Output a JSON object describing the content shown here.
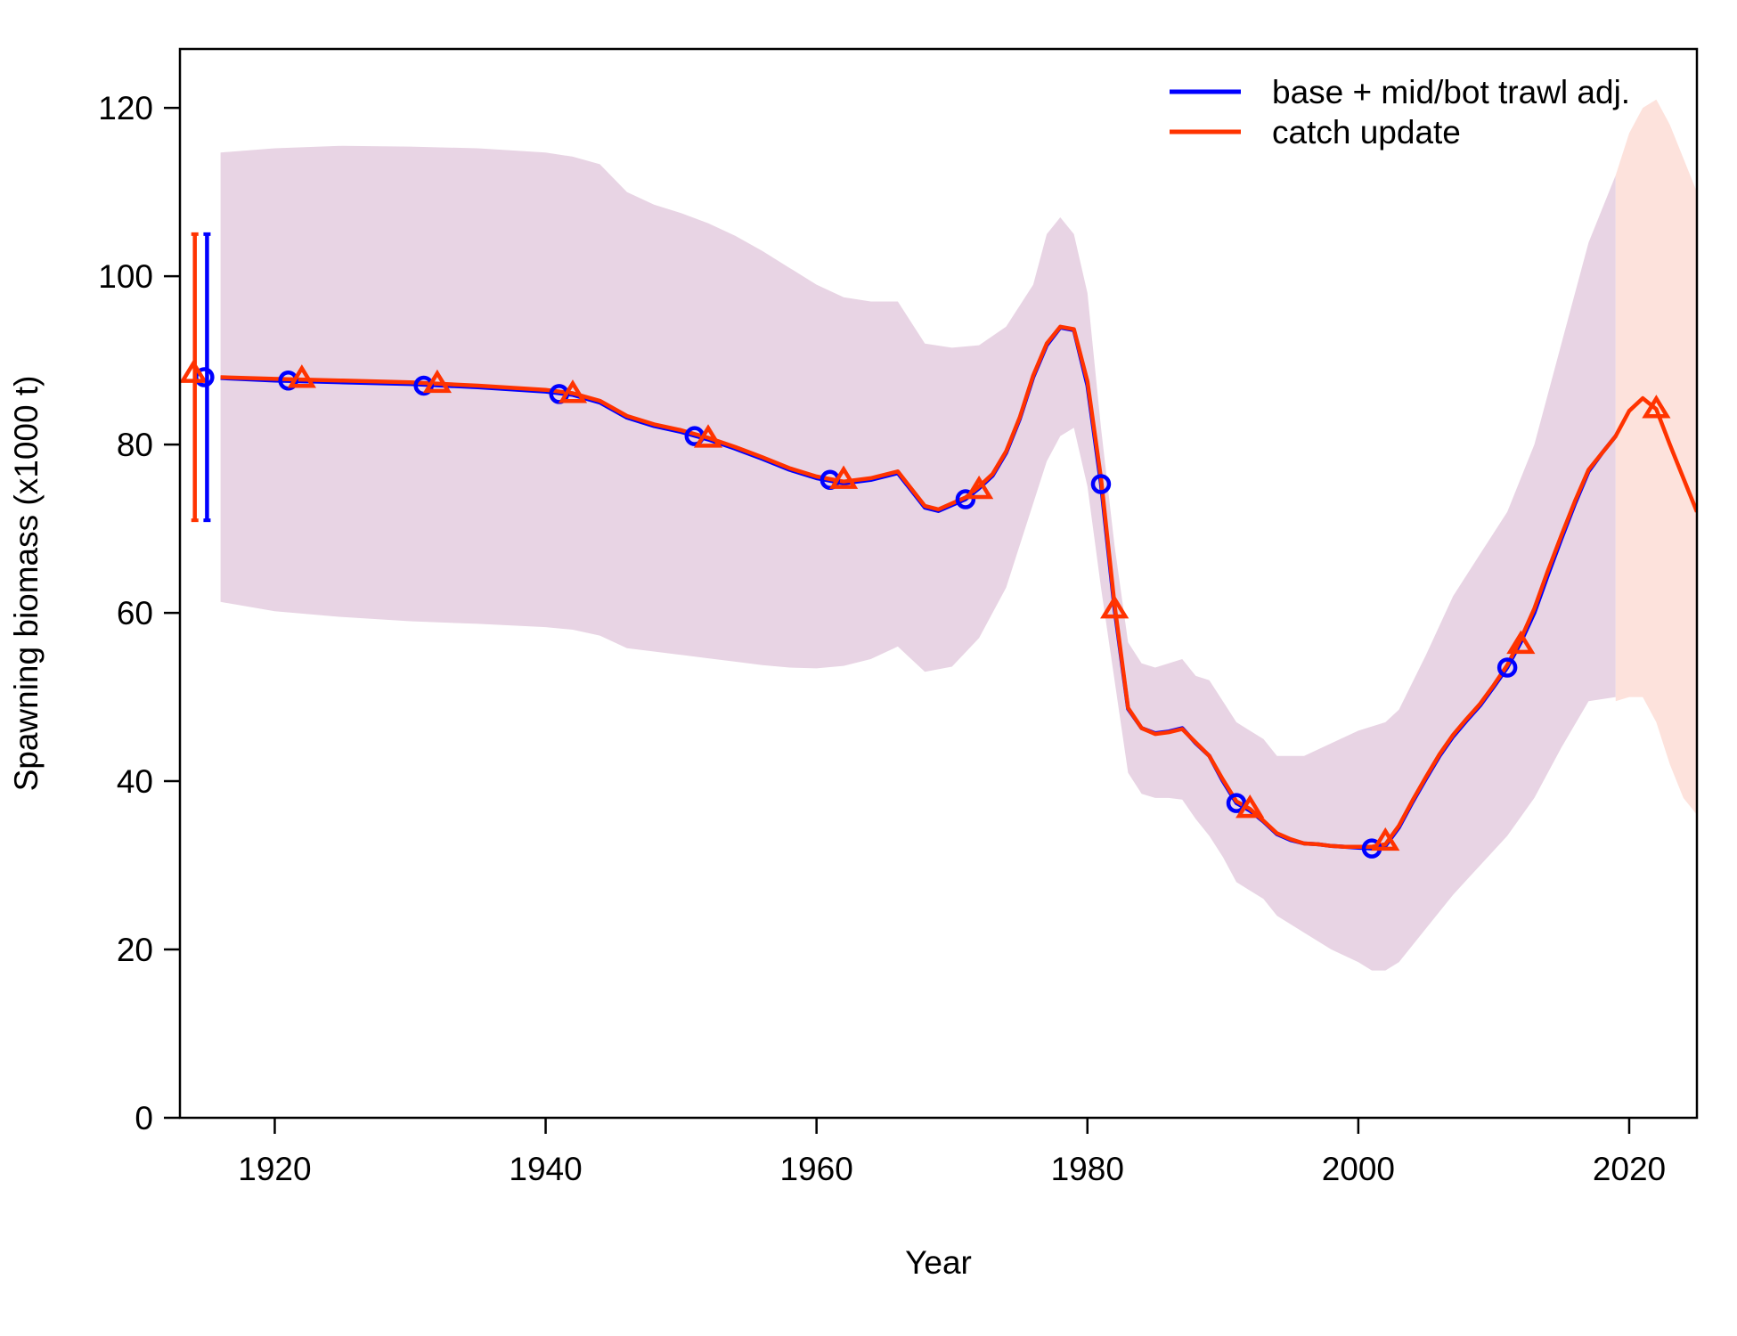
{
  "chart_data": {
    "type": "line",
    "xlabel": "Year",
    "ylabel": "Spawning biomass (x1000 t)",
    "xlim": [
      1913,
      2025
    ],
    "ylim": [
      0,
      127
    ],
    "x_ticks": [
      1920,
      1940,
      1960,
      1980,
      2000,
      2020
    ],
    "x_tick_labels": [
      "1920",
      "1940",
      "1960",
      "1980",
      "2000",
      "2020"
    ],
    "y_ticks": [
      0,
      20,
      40,
      60,
      80,
      100,
      120
    ],
    "y_tick_labels": [
      "0",
      "20",
      "40",
      "60",
      "80",
      "100",
      "120"
    ],
    "legend_position": "top-right",
    "colors": {
      "base": "#0000FF",
      "catch": "#FF3300",
      "band_hist": "#E8D4E4",
      "band_proj": "#FDE2DC"
    },
    "series": [
      {
        "name": "base + mid/bot trawl adj.",
        "color": "#0000FF",
        "marker": "circle",
        "x": [
          1916,
          1920,
          1925,
          1930,
          1935,
          1940,
          1942,
          1944,
          1946,
          1948,
          1950,
          1952,
          1954,
          1956,
          1958,
          1960,
          1962,
          1964,
          1966,
          1968,
          1969,
          1970,
          1971,
          1972,
          1973,
          1974,
          1975,
          1976,
          1977,
          1978,
          1979,
          1980,
          1981,
          1982,
          1983,
          1984,
          1985,
          1986,
          1987,
          1988,
          1989,
          1990,
          1991,
          1992,
          1993,
          1994,
          1995,
          1996,
          1997,
          1998,
          1999,
          2000,
          2001,
          2002,
          2003,
          2004,
          2005,
          2006,
          2007,
          2008,
          2009,
          2010,
          2011,
          2012,
          2013,
          2014,
          2015,
          2016,
          2017,
          2018,
          2019
        ],
        "y": [
          87.9,
          87.6,
          87.4,
          87.2,
          86.8,
          86.3,
          85.9,
          85.0,
          83.2,
          82.2,
          81.5,
          80.6,
          79.5,
          78.3,
          77.0,
          76.0,
          75.4,
          75.8,
          76.6,
          72.5,
          72.1,
          72.8,
          73.5,
          74.8,
          76.3,
          79.0,
          83.0,
          88.0,
          91.8,
          93.9,
          93.6,
          87.0,
          75.3,
          60.5,
          48.6,
          46.3,
          45.7,
          45.9,
          46.3,
          44.5,
          43.0,
          40.0,
          37.4,
          36.5,
          35.2,
          33.7,
          33.0,
          32.6,
          32.5,
          32.3,
          32.2,
          32.1,
          32.0,
          32.3,
          34.5,
          37.5,
          40.3,
          43.0,
          45.3,
          47.2,
          49.0,
          51.2,
          53.5,
          56.5,
          60.0,
          64.5,
          68.8,
          73.0,
          76.8,
          79.0,
          81.0
        ],
        "points": [
          [
            1914.8,
            88.0
          ],
          [
            1921,
            87.6
          ],
          [
            1931,
            87.0
          ],
          [
            1941,
            86.0
          ],
          [
            1951,
            81.0
          ],
          [
            1961,
            75.8
          ],
          [
            1971,
            73.5
          ],
          [
            1981,
            75.3
          ],
          [
            1991,
            37.4
          ],
          [
            2001,
            32.0
          ],
          [
            2011,
            53.5
          ]
        ],
        "initial_interval": {
          "x": 1915,
          "lower": 71.0,
          "upper": 105.0
        }
      },
      {
        "name": "catch update",
        "color": "#FF3300",
        "marker": "triangle",
        "x": [
          1916,
          1920,
          1925,
          1930,
          1935,
          1940,
          1942,
          1944,
          1946,
          1948,
          1950,
          1952,
          1954,
          1956,
          1958,
          1960,
          1962,
          1964,
          1966,
          1968,
          1969,
          1970,
          1971,
          1972,
          1973,
          1974,
          1975,
          1976,
          1977,
          1978,
          1979,
          1980,
          1981,
          1982,
          1983,
          1984,
          1985,
          1986,
          1987,
          1988,
          1989,
          1990,
          1991,
          1992,
          1993,
          1994,
          1995,
          1996,
          1997,
          1998,
          1999,
          2000,
          2001,
          2002,
          2003,
          2004,
          2005,
          2006,
          2007,
          2008,
          2009,
          2010,
          2011,
          2012,
          2013,
          2014,
          2015,
          2016,
          2017,
          2018,
          2019,
          2020,
          2021,
          2022,
          2023,
          2024,
          2025
        ],
        "y": [
          88.0,
          87.8,
          87.6,
          87.4,
          87.0,
          86.5,
          86.1,
          85.2,
          83.4,
          82.4,
          81.7,
          80.8,
          79.7,
          78.5,
          77.2,
          76.2,
          75.6,
          76.0,
          76.8,
          72.7,
          72.3,
          73.0,
          73.7,
          75.0,
          76.5,
          79.2,
          83.2,
          88.2,
          92.0,
          94.0,
          93.7,
          87.5,
          76.0,
          61.0,
          48.7,
          46.3,
          45.6,
          45.8,
          46.2,
          44.6,
          43.0,
          40.2,
          37.6,
          36.7,
          35.3,
          33.8,
          33.1,
          32.6,
          32.5,
          32.3,
          32.2,
          32.2,
          32.2,
          32.5,
          34.7,
          37.7,
          40.5,
          43.2,
          45.5,
          47.4,
          49.2,
          51.4,
          53.8,
          56.9,
          60.5,
          65.0,
          69.2,
          73.3,
          77.0,
          79.0,
          81.0,
          84.0,
          85.5,
          84.2,
          80.0,
          76.0,
          72.0
        ],
        "points": [
          [
            1914,
            88.5
          ],
          [
            1922,
            87.9
          ],
          [
            1932,
            87.3
          ],
          [
            1942,
            86.1
          ],
          [
            1952,
            80.8
          ],
          [
            1962,
            75.9
          ],
          [
            1972,
            74.7
          ],
          [
            1982,
            60.5
          ],
          [
            1992,
            36.8
          ],
          [
            2002,
            32.9
          ],
          [
            2012,
            56.3
          ],
          [
            2022,
            84.3
          ]
        ],
        "initial_interval": {
          "x": 1914.1,
          "lower": 71.0,
          "upper": 105.0
        }
      }
    ],
    "uncertainty_band_historical": {
      "x": [
        1916,
        1920,
        1925,
        1930,
        1935,
        1940,
        1942,
        1944,
        1946,
        1948,
        1950,
        1952,
        1954,
        1956,
        1958,
        1960,
        1962,
        1964,
        1966,
        1968,
        1970,
        1972,
        1974,
        1976,
        1977,
        1978,
        1979,
        1980,
        1981,
        1982,
        1983,
        1984,
        1985,
        1986,
        1987,
        1988,
        1989,
        1990,
        1991,
        1992,
        1993,
        1994,
        1996,
        1998,
        2000,
        2001,
        2002,
        2003,
        2005,
        2007,
        2009,
        2011,
        2013,
        2015,
        2017,
        2019
      ],
      "lower": [
        61.3,
        60.2,
        59.5,
        59.0,
        58.7,
        58.3,
        58.0,
        57.3,
        55.8,
        55.4,
        55.0,
        54.6,
        54.2,
        53.8,
        53.5,
        53.4,
        53.7,
        54.5,
        56.0,
        53.0,
        53.6,
        57.0,
        63.0,
        73.0,
        78.0,
        81.0,
        82.0,
        75.0,
        63.0,
        52.0,
        41.0,
        38.5,
        38.0,
        38.0,
        37.8,
        35.5,
        33.5,
        31.0,
        28.0,
        27.0,
        26.0,
        24.0,
        22.0,
        20.0,
        18.5,
        17.5,
        17.5,
        18.5,
        22.5,
        26.5,
        30.0,
        33.5,
        38.0,
        44.0,
        49.5,
        50.0
      ],
      "upper": [
        114.7,
        115.2,
        115.5,
        115.4,
        115.2,
        114.7,
        114.2,
        113.3,
        110.0,
        108.5,
        107.5,
        106.3,
        104.8,
        103.0,
        101.0,
        99.0,
        97.5,
        97.0,
        97.0,
        92.0,
        91.5,
        91.8,
        94.0,
        99.0,
        105.0,
        107.0,
        105.0,
        98.0,
        82.0,
        68.0,
        56.5,
        54.0,
        53.5,
        54.0,
        54.5,
        52.5,
        52.0,
        49.5,
        47.0,
        46.0,
        45.0,
        43.0,
        43.0,
        44.5,
        46.0,
        46.5,
        47.0,
        48.5,
        55.0,
        62.0,
        67.0,
        72.0,
        80.0,
        92.0,
        104.0,
        112.0
      ]
    },
    "uncertainty_band_projection": {
      "x": [
        2019,
        2020,
        2021,
        2022,
        2023,
        2024,
        2025
      ],
      "lower": [
        49.5,
        50.0,
        50.0,
        47.0,
        42.0,
        38.0,
        36.0
      ],
      "upper": [
        112.0,
        117.0,
        120.0,
        121.0,
        118.0,
        114.0,
        110.0
      ]
    }
  }
}
